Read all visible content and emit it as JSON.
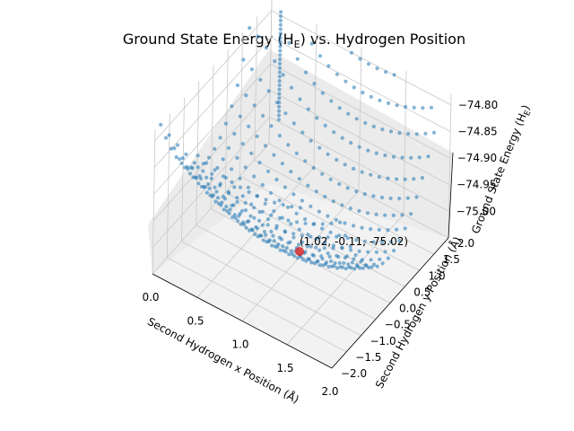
{
  "chart_data": {
    "type": "scatter",
    "title": "Ground State Energy (H",
    "title_sub": "E",
    "title_end": ") vs. Hydrogen Position",
    "xlabel": "Second Hydrogen x Position (Å)",
    "ylabel": "Second Hydrogen y Position (Å)",
    "zlabel": "Ground State Energy (H",
    "zlabel_sub": "E",
    "zlabel_end": ")",
    "xlim": [
      0.0,
      2.0
    ],
    "ylim": [
      -2.0,
      2.0
    ],
    "zlim": [
      -75.05,
      -74.78
    ],
    "x_ticks": [
      "0.0",
      "0.5",
      "1.0",
      "1.5",
      "2.0"
    ],
    "y_ticks": [
      "−2.0",
      "−1.5",
      "−1.0",
      "−0.5",
      "0.0",
      "0.5",
      "1.0",
      "1.5",
      "2.0"
    ],
    "z_ticks": [
      "−75.00",
      "−74.95",
      "−74.90",
      "−74.85",
      "−74.80"
    ],
    "grid": true,
    "series": [
      {
        "color": "#1f77b4",
        "marker": "circle",
        "opacity": 0.55,
        "grid_x_range": [
          0.0,
          2.0
        ],
        "grid_y_range": [
          -2.0,
          2.0
        ],
        "description": "energy surface sampled on x–y grid, minimum near (1.02, −0.11)"
      }
    ],
    "annotation": {
      "text": "(1.02, -0.11, -75.02)",
      "x": 1.02,
      "y": -0.11,
      "z": -75.02,
      "marker_color": "#d62728"
    }
  }
}
